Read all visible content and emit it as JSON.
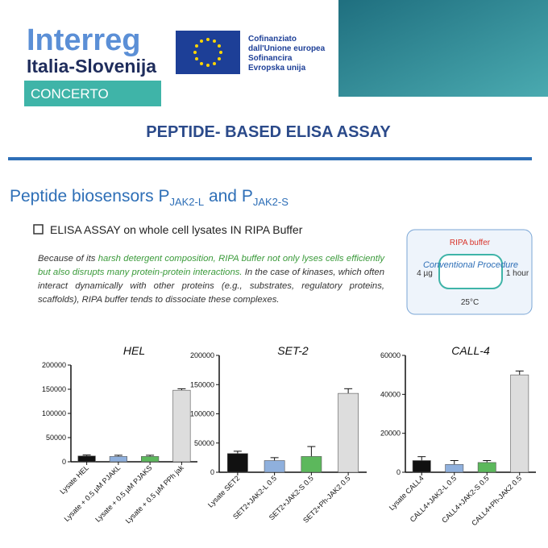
{
  "header": {
    "logo_line1": "Interreg",
    "logo_line2": "Italia-Slovenija",
    "project": "CONCERTO",
    "eu_lines": [
      "Cofinanziato",
      "dall'Unione europea",
      "Sofinancira",
      "Evropska unija"
    ]
  },
  "title": "PEPTIDE- BASED ELISA ASSAY",
  "heading": [
    "Peptide biosensors P",
    "JAK2-L",
    " and P",
    "JAK2-S"
  ],
  "bullet": "ELISA ASSAY on whole cell lysates IN RIPA Buffer",
  "paragraph": [
    "Because of its ",
    "harsh detergent composition, RIPA buffer not only lyses cells efficiently but also disrupts many protein-protein interactions.",
    " In the case of kinases, which often interact dynamically with other proteins (e.g., substrates, regulatory proteins, scaffolds), RIPA buffer tends to dissociate these complexes."
  ],
  "diagram": {
    "title": "RIPA buffer",
    "left": "4 µg",
    "center": "Conventional Procedure",
    "right": "1 hour",
    "bottom": "25°C"
  },
  "chart_data": [
    {
      "type": "bar",
      "title": "HEL",
      "categories": [
        "Lysate HEL",
        "Lysate + 0.5 µM PJAKL",
        "Lysate + 0.5 µM PJAKS",
        "Lysate + 0.5 µM PPh jak"
      ],
      "values": [
        12000,
        11000,
        11000,
        148000
      ],
      "errors": [
        2000,
        2500,
        2500,
        3000
      ],
      "colors": [
        "#111111",
        "#8fb0dd",
        "#5cb85c",
        "#dddddd"
      ],
      "ylim": [
        0,
        200000
      ],
      "yticks": [
        0,
        50000,
        100000,
        150000,
        200000
      ]
    },
    {
      "type": "bar",
      "title": "SET-2",
      "categories": [
        "Lysate SET2",
        "SET2+JAK2-L 0.5",
        "SET2+JAK2-S 0.5",
        "SET2+Ph-JAK2 0.5"
      ],
      "values": [
        32000,
        20000,
        27000,
        135000
      ],
      "errors": [
        4000,
        5000,
        17000,
        8000
      ],
      "colors": [
        "#111111",
        "#8fb0dd",
        "#5cb85c",
        "#dddddd"
      ],
      "ylim": [
        0,
        200000
      ],
      "yticks": [
        0,
        50000,
        100000,
        150000,
        200000
      ]
    },
    {
      "type": "bar",
      "title": "CALL-4",
      "categories": [
        "Lysate CALL4",
        "CALL4+JAK2-L 0.5",
        "CALL4+JAK2-S 0.5",
        "CALL4+Ph-JAK2 0.5"
      ],
      "values": [
        6000,
        4000,
        5000,
        50000
      ],
      "errors": [
        2000,
        2000,
        1000,
        2000
      ],
      "colors": [
        "#111111",
        "#8fb0dd",
        "#5cb85c",
        "#dddddd"
      ],
      "ylim": [
        0,
        60000
      ],
      "yticks": [
        0,
        20000,
        40000,
        60000
      ]
    }
  ]
}
